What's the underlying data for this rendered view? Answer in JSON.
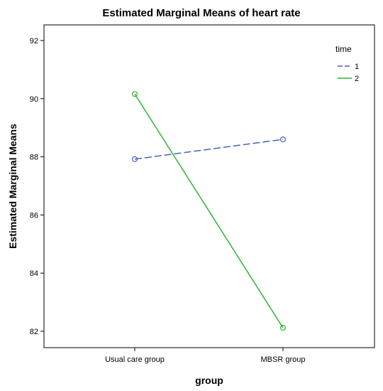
{
  "chart_data": {
    "type": "line",
    "title": "Estimated Marginal Means of heart rate",
    "xlabel": "group",
    "ylabel": "Estimated Marginal Means",
    "categories": [
      "Usual care group",
      "MBSR group"
    ],
    "ylim": [
      81.5,
      92.5
    ],
    "yticks": [
      82,
      84,
      86,
      88,
      90,
      92
    ],
    "grid": false,
    "legend": {
      "title": "time",
      "position": "top-right"
    },
    "series": [
      {
        "name": "1",
        "values": [
          87.92,
          88.6
        ],
        "color": "#4a5fbf",
        "dash": "dashed"
      },
      {
        "name": "2",
        "values": [
          90.16,
          82.12
        ],
        "color": "#2db52d",
        "dash": "solid"
      }
    ]
  }
}
